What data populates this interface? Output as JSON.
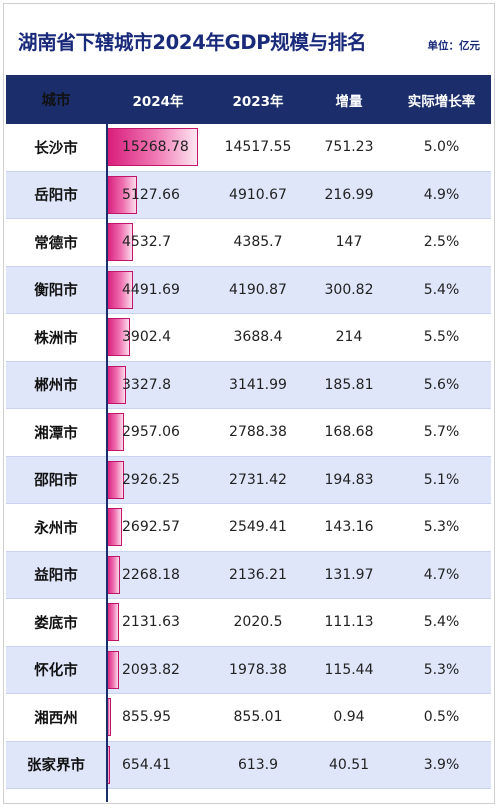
{
  "title": "湖南省下辖城市2024年GDP规模与排名",
  "unit": "单位：亿元",
  "headers": [
    "城市",
    "2024年",
    "2023年",
    "增量",
    "实际增长率"
  ],
  "chart_data": {
    "type": "table",
    "columns": [
      "城市",
      "2024年",
      "2023年",
      "增量",
      "实际增长率"
    ],
    "rows": [
      {
        "city": "长沙市",
        "gdp2024": "15268.78",
        "gdp2023": "14517.55",
        "increase": "751.23",
        "growth": "5.0%"
      },
      {
        "city": "岳阳市",
        "gdp2024": "5127.66",
        "gdp2023": "4910.67",
        "increase": "216.99",
        "growth": "4.9%"
      },
      {
        "city": "常德市",
        "gdp2024": "4532.7",
        "gdp2023": "4385.7",
        "increase": "147",
        "growth": "2.5%"
      },
      {
        "city": "衡阳市",
        "gdp2024": "4491.69",
        "gdp2023": "4190.87",
        "increase": "300.82",
        "growth": "5.4%"
      },
      {
        "city": "株洲市",
        "gdp2024": "3902.4",
        "gdp2023": "3688.4",
        "increase": "214",
        "growth": "5.5%"
      },
      {
        "city": "郴州市",
        "gdp2024": "3327.8",
        "gdp2023": "3141.99",
        "increase": "185.81",
        "growth": "5.6%"
      },
      {
        "city": "湘潭市",
        "gdp2024": "2957.06",
        "gdp2023": "2788.38",
        "increase": "168.68",
        "growth": "5.7%"
      },
      {
        "city": "邵阳市",
        "gdp2024": "2926.25",
        "gdp2023": "2731.42",
        "increase": "194.83",
        "growth": "5.1%"
      },
      {
        "city": "永州市",
        "gdp2024": "2692.57",
        "gdp2023": "2549.41",
        "increase": "143.16",
        "growth": "5.3%"
      },
      {
        "city": "益阳市",
        "gdp2024": "2268.18",
        "gdp2023": "2136.21",
        "increase": "131.97",
        "growth": "4.7%"
      },
      {
        "city": "娄底市",
        "gdp2024": "2131.63",
        "gdp2023": "2020.5",
        "increase": "111.13",
        "growth": "5.4%"
      },
      {
        "city": "怀化市",
        "gdp2024": "2093.82",
        "gdp2023": "1978.38",
        "increase": "115.44",
        "growth": "5.3%"
      },
      {
        "city": "湘西州",
        "gdp2024": "855.95",
        "gdp2023": "855.01",
        "increase": "0.94",
        "growth": "0.5%"
      },
      {
        "city": "张家界市",
        "gdp2024": "654.41",
        "gdp2023": "613.9",
        "increase": "40.51",
        "growth": "3.9%"
      }
    ],
    "bar_column": "2024年",
    "bar_max": 15268.78
  },
  "colors": {
    "header_bg": "#1b2d6b",
    "title": "#1a2a7a",
    "alt_row": "#dfe6fa",
    "bar": "#d81b7a"
  }
}
